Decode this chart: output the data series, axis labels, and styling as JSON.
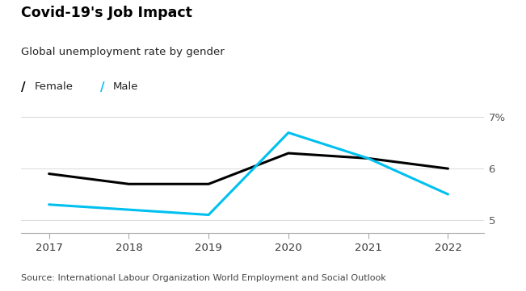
{
  "title": "Covid-19's Job Impact",
  "subtitle": "Global unemployment rate by gender",
  "source": "Source: International Labour Organization World Employment and Social Outlook",
  "years": [
    2017,
    2018,
    2019,
    2020,
    2021,
    2022
  ],
  "female": [
    5.9,
    5.7,
    5.7,
    6.3,
    6.2,
    6.0
  ],
  "male": [
    5.3,
    5.2,
    5.1,
    6.7,
    6.2,
    5.5
  ],
  "female_color": "#000000",
  "male_color": "#00c0f0",
  "ylim": [
    4.75,
    7.3
  ],
  "yticks": [
    5,
    6,
    7
  ],
  "ytick_labels": [
    "5",
    "6",
    "7%"
  ],
  "background_color": "#ffffff",
  "legend_female": "Female",
  "legend_male": "Male",
  "line_width": 2.2,
  "figsize": [
    6.51,
    3.61
  ],
  "dpi": 100
}
